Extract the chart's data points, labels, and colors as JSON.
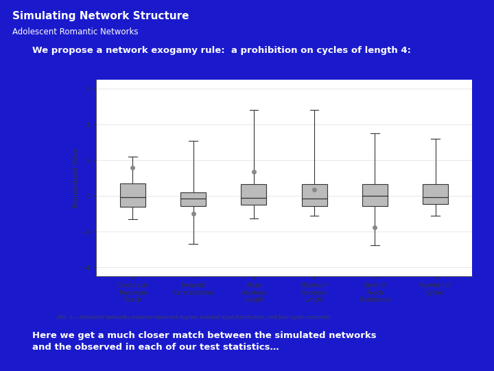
{
  "title": "Simulating Network Structure",
  "subtitle": "Adolescent Romantic Networks",
  "body_text1": "We propose a network exogamy rule:  a prohibition on cycles of length 4:",
  "body_text2": "Here we get a much closer match between the simulated networks\nand the observed in each of our test statistics…",
  "fig_caption": "FIG. 9.—Simulated networks preserve observed degree, isolated dyad distribution, and four-cycle constraint",
  "background_color": "#1a1acc",
  "box_categories": [
    "Density at\nMaximum\nReach",
    "Network\nCentralization",
    "Mean\nGeodesic\nLength",
    "Maximum\nGeodesic\nLength",
    "Skew of\nReach\nDistribution",
    "Number of\nCycles"
  ],
  "box_data": [
    {
      "q1": -0.6,
      "median": -0.05,
      "q3": 0.7,
      "whisker_low": -1.3,
      "whisker_high": 2.2,
      "outlier": 1.6
    },
    {
      "q1": -0.55,
      "median": -0.15,
      "q3": 0.2,
      "whisker_low": -2.7,
      "whisker_high": 3.1,
      "outlier": -1.0
    },
    {
      "q1": -0.5,
      "median": -0.1,
      "q3": 0.65,
      "whisker_low": -1.25,
      "whisker_high": 4.8,
      "outlier": 1.35
    },
    {
      "q1": -0.55,
      "median": -0.15,
      "q3": 0.65,
      "whisker_low": -1.1,
      "whisker_high": 4.8,
      "outlier": 0.35
    },
    {
      "q1": -0.55,
      "median": 0.0,
      "q3": 0.65,
      "whisker_low": -2.75,
      "whisker_high": 3.5,
      "outlier": -1.75
    },
    {
      "q1": -0.45,
      "median": -0.05,
      "q3": 0.65,
      "whisker_low": -1.1,
      "whisker_high": 3.2,
      "outlier": null
    }
  ],
  "ylabel": "Standardized Value",
  "ylim": [
    -4.5,
    6.5
  ],
  "yticks": [
    -4,
    -2,
    0,
    2,
    4,
    6
  ],
  "box_color": "#bbbbbb",
  "box_edge_color": "#333333",
  "whisker_color": "#333333",
  "median_color": "#333333",
  "outlier_color": "#888888",
  "panel_bg": "#f5f5f0"
}
